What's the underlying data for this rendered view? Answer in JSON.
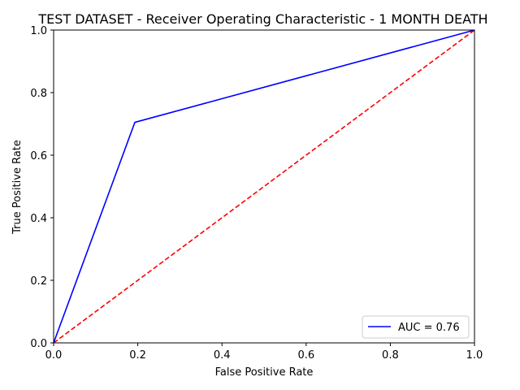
{
  "chart_data": {
    "type": "line",
    "title": "TEST DATASET - Receiver Operating Characteristic - 1 MONTH DEATH",
    "xlabel": "False Positive Rate",
    "ylabel": "True Positive Rate",
    "xlim": [
      0,
      1
    ],
    "ylim": [
      0,
      1
    ],
    "xticks": [
      "0.0",
      "0.2",
      "0.4",
      "0.6",
      "0.8",
      "1.0"
    ],
    "yticks": [
      "0.0",
      "0.2",
      "0.4",
      "0.6",
      "0.8",
      "1.0"
    ],
    "grid": false,
    "legend_position": "lower-right",
    "series": [
      {
        "name": "AUC = 0.76",
        "color": "#0000ff",
        "style": "solid",
        "x": [
          0.0,
          0.193,
          1.0
        ],
        "y": [
          0.0,
          0.705,
          1.0
        ]
      },
      {
        "color": "#ff0000",
        "style": "dashed",
        "x": [
          0.0,
          1.0
        ],
        "y": [
          0.0,
          1.0
        ]
      }
    ]
  }
}
